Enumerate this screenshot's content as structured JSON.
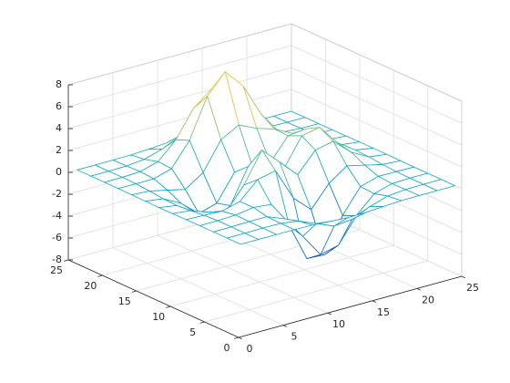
{
  "chart_data": {
    "type": "mesh",
    "x": [
      1,
      3,
      5,
      7,
      9,
      11,
      13,
      15,
      17,
      19,
      21,
      23,
      25
    ],
    "y": [
      1,
      3,
      5,
      7,
      9,
      11,
      13,
      15,
      17,
      19,
      21,
      23,
      25
    ],
    "z": [
      [
        0,
        0,
        0,
        0,
        -0.03,
        -0.14,
        -0.24,
        -0.22,
        -0.11,
        -0.03,
        -0.01,
        0,
        0
      ],
      [
        0,
        0,
        0.02,
        0,
        -0.23,
        -0.91,
        -1.57,
        -1.41,
        -0.69,
        -0.18,
        -0.03,
        0,
        0
      ],
      [
        0,
        0.01,
        0.05,
        0.05,
        -0.59,
        -2.63,
        -4.75,
        -4.34,
        -2.1,
        -0.53,
        -0.06,
        0,
        0
      ],
      [
        0,
        0.01,
        0.08,
        0.33,
        0.15,
        -2.19,
        -5.68,
        -5.76,
        -2.63,
        -0.44,
        0.04,
        0.03,
        0
      ],
      [
        -0.01,
        -0.06,
        -0.13,
        0.3,
        1.86,
        2.22,
        -0.72,
        -2.22,
        -0.27,
        0.88,
        0.5,
        0.11,
        0.01
      ],
      [
        -0.03,
        -0.2,
        -0.8,
        -1.21,
        0.8,
        3.55,
        2,
        0.39,
        2.2,
        2.56,
        1.12,
        0.24,
        0.03
      ],
      [
        -0.04,
        -0.3,
        -1.33,
        -2.77,
        -1.65,
        1.48,
        0.98,
        0.38,
        2.94,
        3.27,
        1.41,
        0.3,
        0.03
      ],
      [
        -0.03,
        -0.25,
        -1.12,
        -2.49,
        -2,
        0.39,
        0.46,
        0.38,
        2.38,
        2.56,
        1.09,
        0.23,
        0.03
      ],
      [
        -0.01,
        -0.11,
        -0.48,
        -0.86,
        0.23,
        2.79,
        3.69,
        2.94,
        2.43,
        1.58,
        0.58,
        0.11,
        0.01
      ],
      [
        0,
        -0.02,
        -0.01,
        0.48,
        2.61,
        6.2,
        8,
        6.25,
        3.25,
        1.19,
        0.29,
        0.05,
        0
      ],
      [
        0,
        0.01,
        0.08,
        0.55,
        2.09,
        4.55,
        5.85,
        4.56,
        2.21,
        0.68,
        0.13,
        0.02,
        0
      ],
      [
        0,
        0,
        0.03,
        0.19,
        0.69,
        1.47,
        1.88,
        1.47,
        0.7,
        0.21,
        0.04,
        0,
        0
      ],
      [
        0,
        0,
        0.01,
        0.03,
        0.11,
        0.23,
        0.3,
        0.23,
        0.11,
        0.03,
        0.01,
        0,
        0
      ]
    ],
    "xlim": [
      0,
      25
    ],
    "ylim": [
      0,
      25
    ],
    "zlim": [
      -8,
      8
    ],
    "xticks": [
      0,
      5,
      10,
      15,
      20,
      25
    ],
    "yticks": [
      0,
      5,
      10,
      15,
      20,
      25
    ],
    "zticks": [
      -8,
      -6,
      -4,
      -2,
      0,
      2,
      4,
      6,
      8
    ],
    "grid": true,
    "colormap": [
      "#352a87",
      "#0f5cdd",
      "#1481d6",
      "#06a4ca",
      "#2eb7a4",
      "#87bf77",
      "#d1bb59",
      "#fec832",
      "#f9fb0e"
    ]
  }
}
